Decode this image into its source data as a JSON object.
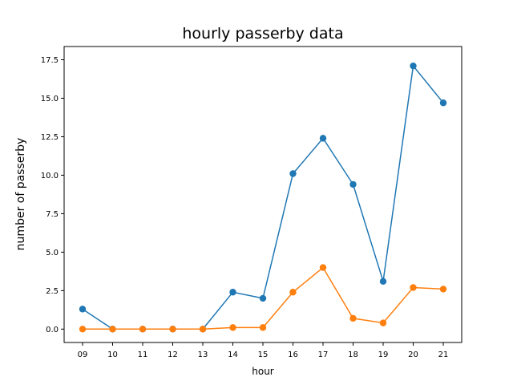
{
  "chart_data": {
    "type": "line",
    "title": "hourly passerby data",
    "xlabel": "hour",
    "ylabel": "number of passerby",
    "categories": [
      "09",
      "10",
      "11",
      "12",
      "13",
      "14",
      "15",
      "16",
      "17",
      "18",
      "19",
      "20",
      "21"
    ],
    "ylim": [
      -0.87,
      18.36
    ],
    "yticks": [
      "0.0",
      "2.5",
      "5.0",
      "7.5",
      "10.0",
      "12.5",
      "15.0",
      "17.5"
    ],
    "grid": false,
    "series": [
      {
        "color": "#1f77b4",
        "values": [
          1.3,
          0.0,
          0.0,
          0.0,
          0.0,
          2.4,
          2.0,
          10.1,
          12.4,
          9.4,
          3.1,
          17.1,
          14.7
        ]
      },
      {
        "color": "#ff7f0e",
        "values": [
          0.0,
          0.0,
          0.0,
          0.0,
          0.0,
          0.1,
          0.1,
          2.4,
          4.0,
          0.7,
          0.4,
          2.7,
          2.6
        ]
      }
    ]
  }
}
